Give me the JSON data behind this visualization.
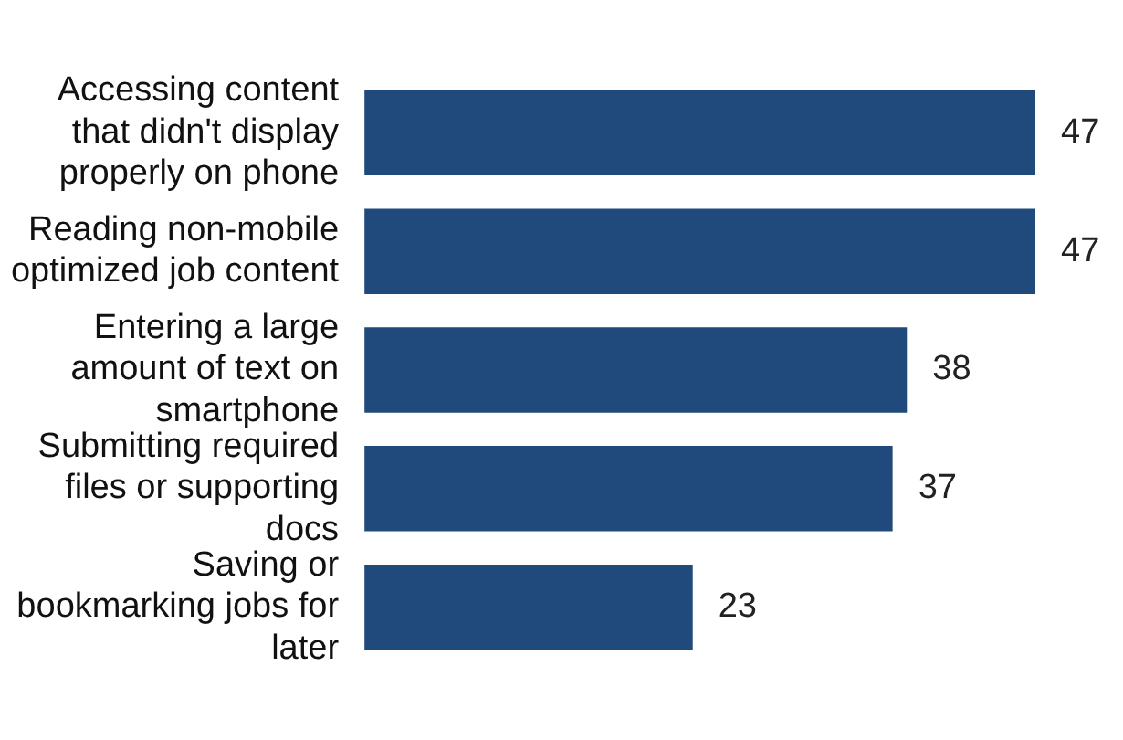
{
  "chart_data": {
    "type": "bar",
    "orientation": "horizontal",
    "categories": [
      "Accessing content that didn't display properly on phone",
      "Reading non-mobile optimized job content",
      "Entering a large amount of text on smartphone",
      "Submitting required files or supporting docs",
      "Saving or bookmarking jobs for later"
    ],
    "values": [
      47,
      47,
      38,
      37,
      23
    ],
    "color": "#214a7c",
    "data_labels": true
  }
}
